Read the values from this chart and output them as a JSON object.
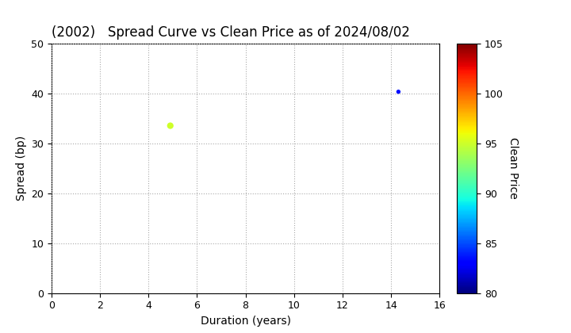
{
  "title": "(2002)   Spread Curve vs Clean Price as of 2024/08/02",
  "xlabel": "Duration (years)",
  "ylabel": "Spread (bp)",
  "colorbar_label": "Clean Price",
  "xlim": [
    0,
    16
  ],
  "ylim": [
    0,
    50
  ],
  "xticks": [
    0,
    2,
    4,
    6,
    8,
    10,
    12,
    14,
    16
  ],
  "yticks": [
    0,
    10,
    20,
    30,
    40,
    50
  ],
  "colorbar_min": 80,
  "colorbar_max": 105,
  "colorbar_ticks": [
    80,
    85,
    90,
    95,
    100,
    105
  ],
  "points": [
    {
      "duration": 4.9,
      "spread": 33.5,
      "clean_price": 95.0,
      "size": 35
    },
    {
      "duration": 14.3,
      "spread": 40.3,
      "clean_price": 83.5,
      "size": 15
    }
  ],
  "background_color": "#ffffff",
  "grid_color": "#aaaaaa",
  "title_fontsize": 12,
  "axis_label_fontsize": 10,
  "tick_fontsize": 9,
  "colorbar_label_fontsize": 10
}
